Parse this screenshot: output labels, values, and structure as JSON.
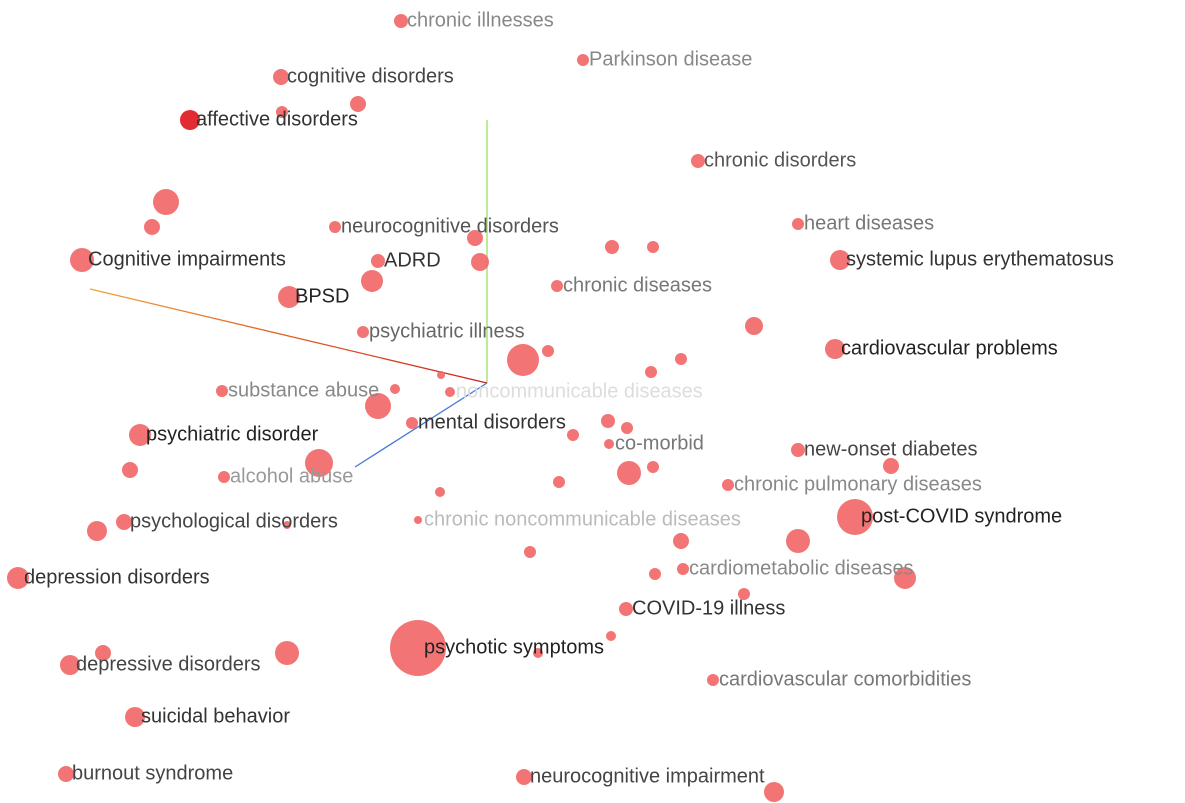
{
  "points": [
    {
      "label": "chronic illnesses"
    },
    {
      "label": "Parkinson disease"
    },
    {
      "label": "cognitive disorders"
    },
    {
      "label": "affective disorders"
    },
    {
      "label": "chronic disorders"
    },
    {
      "label": "heart diseases"
    },
    {
      "label": "neurocognitive disorders"
    },
    {
      "label": "systemic lupus erythematosus"
    },
    {
      "label": "Cognitive impairments"
    },
    {
      "label": "ADRD"
    },
    {
      "label": "chronic diseases"
    },
    {
      "label": "BPSD"
    },
    {
      "label": "psychiatric illness"
    },
    {
      "label": "cardiovascular problems"
    },
    {
      "label": "noncommunicable diseases"
    },
    {
      "label": "substance abuse"
    },
    {
      "label": "mental disorders"
    },
    {
      "label": "psychiatric disorder"
    },
    {
      "label": "co-morbid"
    },
    {
      "label": "new-onset diabetes"
    },
    {
      "label": "alcohol abuse"
    },
    {
      "label": "chronic pulmonary diseases"
    },
    {
      "label": "psychological disorders"
    },
    {
      "label": "chronic noncommunicable diseases"
    },
    {
      "label": "post-COVID syndrome"
    },
    {
      "label": "depression disorders"
    },
    {
      "label": "cardiometabolic diseases"
    },
    {
      "label": "COVID-19 illness"
    },
    {
      "label": "psychotic symptoms"
    },
    {
      "label": "depressive disorders"
    },
    {
      "label": "cardiovascular comorbidities"
    },
    {
      "label": "suicidal behavior"
    },
    {
      "label": "burnout syndrome"
    },
    {
      "label": "neurocognitive impairment"
    }
  ]
}
